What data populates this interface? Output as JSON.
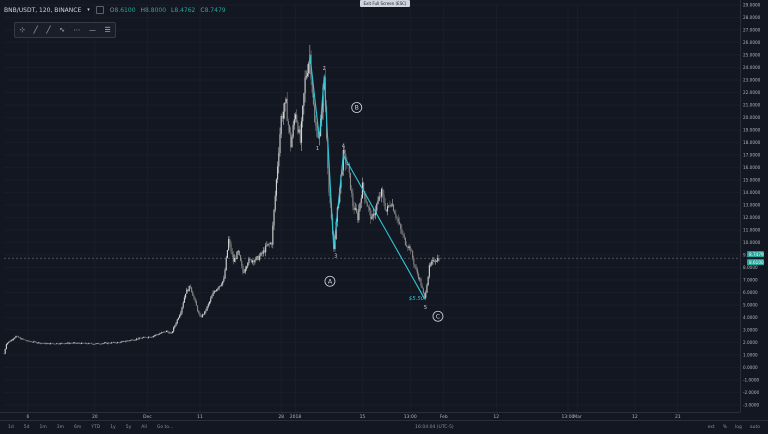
{
  "toolbar": {
    "symbol": "BNB/USDT, 120, BINANCE",
    "caret": "▾",
    "ohlc": [
      {
        "key": "O",
        "value": "8.6100"
      },
      {
        "key": "H",
        "value": "8.8000"
      },
      {
        "key": "L",
        "value": "8.4762"
      },
      {
        "key": "C",
        "value": "8.7479"
      }
    ],
    "exit_fullscreen": "Exit Full Screen (ESC)"
  },
  "drawing_tools": [
    "⊹",
    "╱",
    "╱",
    "∿",
    "⋯",
    "—",
    "☰"
  ],
  "colors": {
    "background": "#131722",
    "candle_up": "#d6d6d6",
    "candle_down": "#8a8a8a",
    "wave": "#2ec6d6",
    "price_badge": "#26a69a"
  },
  "chart_data": {
    "type": "line",
    "y_ticks": [
      "29.0000",
      "28.0000",
      "27.0000",
      "26.0000",
      "25.0000",
      "24.0000",
      "23.0000",
      "22.0000",
      "21.0000",
      "20.0000",
      "19.0000",
      "18.0000",
      "17.0000",
      "16.0000",
      "15.0000",
      "14.0000",
      "13.0000",
      "12.0000",
      "11.0000",
      "10.0000",
      "9.0000",
      "8.0000",
      "7.0000",
      "6.0000",
      "5.0000",
      "4.0000",
      "3.0000",
      "2.0000",
      "1.0000",
      "0.0000",
      "-1.0000",
      "-2.0000",
      "-3.0000"
    ],
    "ylim": [
      -3,
      29
    ],
    "x_ticks": [
      "6",
      "20",
      "Dec",
      "11",
      "28",
      "2018",
      "15",
      "13:00",
      "Feb",
      "12",
      "13:00",
      "Mar",
      "12",
      "21"
    ],
    "x_tick_days": [
      6,
      20,
      31,
      42,
      59,
      62,
      76,
      86,
      93,
      104,
      119,
      121,
      133,
      142
    ],
    "xlim": [
      1,
      155
    ],
    "price": [
      [
        1,
        1.1
      ],
      [
        1.5,
        1.9
      ],
      [
        2.5,
        2.2
      ],
      [
        3.5,
        2.5
      ],
      [
        4.5,
        2.3
      ],
      [
        6,
        2.1
      ],
      [
        10,
        1.9
      ],
      [
        15,
        1.95
      ],
      [
        20,
        1.9
      ],
      [
        25,
        2.0
      ],
      [
        29,
        2.3
      ],
      [
        32,
        2.5
      ],
      [
        35,
        2.9
      ],
      [
        36,
        2.7
      ],
      [
        38,
        4.5
      ],
      [
        39,
        6.0
      ],
      [
        40,
        6.5
      ],
      [
        41,
        5.2
      ],
      [
        42,
        4.0
      ],
      [
        43,
        4.4
      ],
      [
        45,
        6.1
      ],
      [
        47,
        7.0
      ],
      [
        48,
        10.2
      ],
      [
        49,
        8.5
      ],
      [
        50,
        9.2
      ],
      [
        51,
        7.6
      ],
      [
        52,
        8.5
      ],
      [
        54,
        8.7
      ],
      [
        55,
        9.1
      ],
      [
        56,
        9.7
      ],
      [
        57,
        10.0
      ],
      [
        58,
        15.0
      ],
      [
        59,
        20.0
      ],
      [
        60,
        21.0
      ],
      [
        61,
        17.8
      ],
      [
        62,
        20.5
      ],
      [
        63,
        18.0
      ],
      [
        64,
        23.0
      ],
      [
        65,
        25.0
      ],
      [
        66,
        19.5
      ],
      [
        67,
        18.3
      ],
      [
        68,
        23.3
      ],
      [
        69,
        14.0
      ],
      [
        70,
        9.5
      ],
      [
        71,
        13.5
      ],
      [
        72,
        17.0
      ],
      [
        73,
        16.0
      ],
      [
        74,
        13.0
      ],
      [
        75,
        12.0
      ],
      [
        76,
        14.5
      ],
      [
        77,
        13.0
      ],
      [
        78,
        11.8
      ],
      [
        79,
        13.0
      ],
      [
        80,
        14.0
      ],
      [
        81,
        12.5
      ],
      [
        82,
        13.3
      ],
      [
        83,
        12.2
      ],
      [
        84,
        11.0
      ],
      [
        85,
        10.0
      ],
      [
        86,
        9.5
      ],
      [
        87,
        8.0
      ],
      [
        88,
        7.0
      ],
      [
        89,
        5.5
      ],
      [
        90,
        8.0
      ],
      [
        91,
        8.6
      ],
      [
        92,
        8.75
      ]
    ],
    "current_price": "8.7479",
    "prev_price": "8.6100",
    "waves": [
      {
        "name": "A-leg",
        "points": [
          [
            65,
            25.0
          ],
          [
            67,
            18.3
          ],
          [
            68,
            23.3
          ],
          [
            70,
            9.5
          ]
        ]
      },
      {
        "name": "C-leg",
        "points": [
          [
            70,
            9.5
          ],
          [
            72,
            17.0
          ],
          [
            89,
            5.5
          ]
        ]
      }
    ],
    "wave_labels": [
      {
        "text": "2",
        "x": 68,
        "y": 23.8
      },
      {
        "text": "1",
        "x": 66.6,
        "y": 17.4
      },
      {
        "text": "3",
        "x": 70.4,
        "y": 8.8
      },
      {
        "text": "4",
        "x": 72.0,
        "y": 17.6
      },
      {
        "text": "5",
        "x": 89.2,
        "y": 4.7
      }
    ],
    "circled_labels": [
      {
        "text": "B",
        "x": 74.8,
        "y": 20.8
      },
      {
        "text": "A",
        "x": 69.2,
        "y": 6.9
      },
      {
        "text": "C",
        "x": 91.8,
        "y": 4.1
      }
    ],
    "annotation": {
      "text": "$5.50",
      "x": 85.7,
      "y": 5.4
    }
  },
  "bottom_bar": {
    "timeframes": [
      "1d",
      "5d",
      "1m",
      "3m",
      "6m",
      "YTD",
      "1y",
      "5y",
      "All",
      "Go to..."
    ],
    "clock": "16:04:04 (UTC-5)",
    "options": [
      "ext",
      "%",
      "log",
      "auto"
    ]
  }
}
